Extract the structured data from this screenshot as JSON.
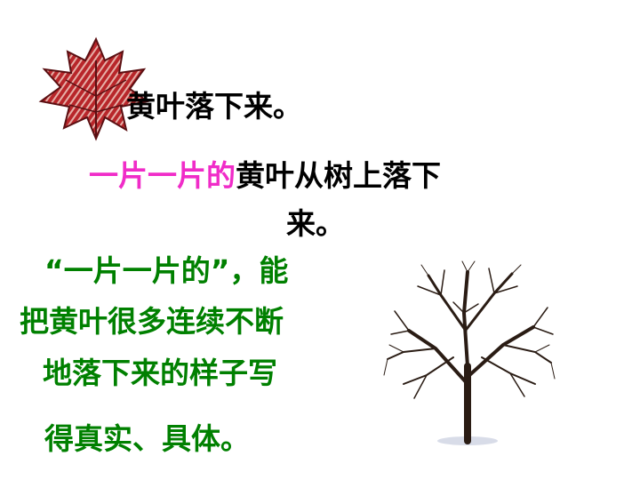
{
  "slide": {
    "line1": "黄叶落下来。",
    "line2_pink": "一片一片的",
    "line2_black": "黄叶从树上落下",
    "line3": "来。",
    "green_lines": [
      "“一片一片的”，能",
      "把黄叶很多连续不断",
      "地落下来的样子写",
      "得真实、具体。"
    ]
  },
  "colors": {
    "pink": "#f02cc8",
    "green": "#008000",
    "text": "#000000",
    "leaf": "#b22222"
  },
  "icons": {
    "leaf": "maple-leaf-icon",
    "tree": "bare-tree-icon"
  }
}
